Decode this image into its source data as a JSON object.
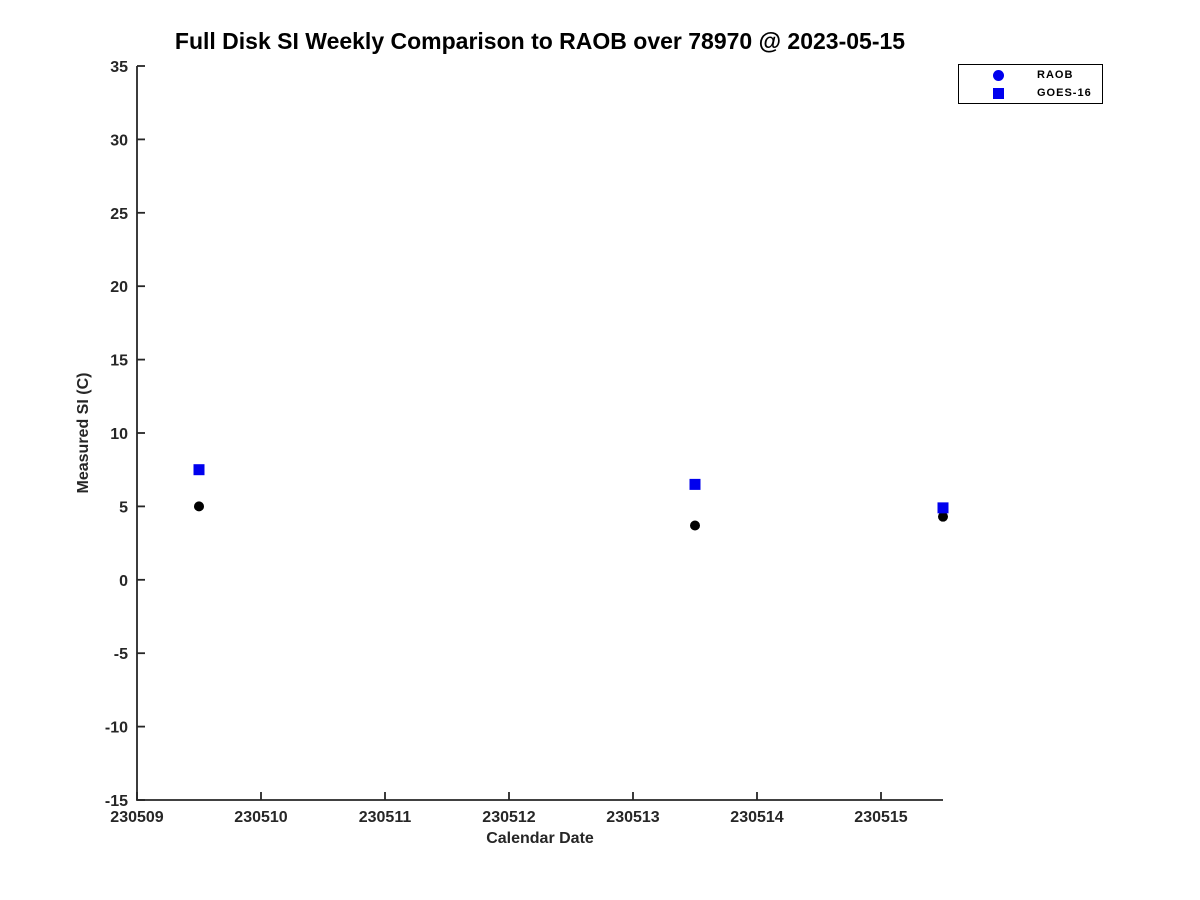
{
  "chart_data": {
    "type": "scatter",
    "title": "Full Disk SI Weekly Comparison to RAOB over 78970 @ 2023-05-15",
    "xlabel": "Calendar Date",
    "ylabel": "Measured SI (C)",
    "xlim": [
      230509,
      230515.5
    ],
    "ylim": [
      -15,
      35
    ],
    "xticks": [
      230509,
      230510,
      230511,
      230512,
      230513,
      230514,
      230515
    ],
    "yticks": [
      -15,
      -10,
      -5,
      0,
      5,
      10,
      15,
      20,
      25,
      30,
      35
    ],
    "grid": false,
    "legend_position": "top-right",
    "x": [
      230509.5,
      230513.5,
      230515.5
    ],
    "series": [
      {
        "name": "RAOB",
        "marker": "circle",
        "color": "#000000",
        "legend_color": "#0000ee",
        "values": [
          5.0,
          3.7,
          4.3
        ]
      },
      {
        "name": "GOES-16",
        "marker": "square",
        "color": "#0000ee",
        "legend_color": "#0000ee",
        "values": [
          7.5,
          6.5,
          4.9
        ]
      }
    ],
    "axis_color": "#262626",
    "text_color": "#262626",
    "background_color": "#ffffff"
  }
}
